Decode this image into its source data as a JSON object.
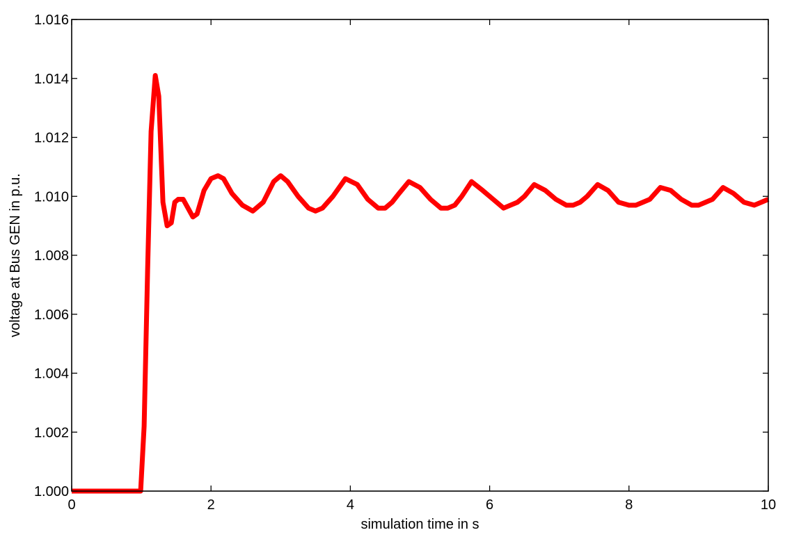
{
  "chart_data": {
    "type": "line",
    "title": "",
    "xlabel": "simulation time in s",
    "ylabel": "voltage at Bus GEN in p.u.",
    "xlim": [
      0,
      10
    ],
    "ylim": [
      1.0,
      1.016
    ],
    "x_ticks": [
      0,
      2,
      4,
      6,
      8,
      10
    ],
    "x_tick_labels": [
      "0",
      "2",
      "4",
      "6",
      "8",
      "10"
    ],
    "y_ticks": [
      1.0,
      1.002,
      1.004,
      1.006,
      1.008,
      1.01,
      1.012,
      1.014,
      1.016
    ],
    "y_tick_labels": [
      "1.000",
      "1.002",
      "1.004",
      "1.006",
      "1.008",
      "1.010",
      "1.012",
      "1.014",
      "1.016"
    ],
    "grid": false,
    "legend": "none",
    "line_color": "#ff0000",
    "series": [
      {
        "color": "#ff0000",
        "x": [
          0,
          0.5,
          0.99,
          1.04,
          1.09,
          1.14,
          1.2,
          1.25,
          1.31,
          1.37,
          1.43,
          1.48,
          1.53,
          1.6,
          1.67,
          1.74,
          1.8,
          1.9,
          2.0,
          2.1,
          2.18,
          2.3,
          2.45,
          2.6,
          2.75,
          2.9,
          3.0,
          3.1,
          3.25,
          3.4,
          3.5,
          3.6,
          3.75,
          3.93,
          4.1,
          4.25,
          4.4,
          4.5,
          4.6,
          4.7,
          4.84,
          5.0,
          5.15,
          5.3,
          5.4,
          5.5,
          5.6,
          5.74,
          5.9,
          6.05,
          6.2,
          6.3,
          6.4,
          6.5,
          6.64,
          6.8,
          6.95,
          7.1,
          7.2,
          7.3,
          7.4,
          7.55,
          7.7,
          7.85,
          8.0,
          8.1,
          8.2,
          8.3,
          8.45,
          8.6,
          8.75,
          8.9,
          9.0,
          9.1,
          9.2,
          9.35,
          9.5,
          9.65,
          9.8,
          9.9,
          10.0
        ],
        "y": [
          1.0,
          1.0,
          1.0,
          1.0022,
          1.0075,
          1.0122,
          1.0141,
          1.0134,
          1.0098,
          1.009,
          1.0091,
          1.0098,
          1.0099,
          1.0099,
          1.0096,
          1.0093,
          1.0094,
          1.0102,
          1.0106,
          1.0107,
          1.0106,
          1.0101,
          1.0097,
          1.0095,
          1.0098,
          1.0105,
          1.0107,
          1.0105,
          1.01,
          1.0096,
          1.0095,
          1.0096,
          1.01,
          1.0106,
          1.0104,
          1.0099,
          1.0096,
          1.0096,
          1.0098,
          1.0101,
          1.0105,
          1.0103,
          1.0099,
          1.0096,
          1.0096,
          1.0097,
          1.01,
          1.0105,
          1.0102,
          1.0099,
          1.0096,
          1.0097,
          1.0098,
          1.01,
          1.0104,
          1.0102,
          1.0099,
          1.0097,
          1.0097,
          1.0098,
          1.01,
          1.0104,
          1.0102,
          1.0098,
          1.0097,
          1.0097,
          1.0098,
          1.0099,
          1.0103,
          1.0102,
          1.0099,
          1.0097,
          1.0097,
          1.0098,
          1.0099,
          1.0103,
          1.0101,
          1.0098,
          1.0097,
          1.0098,
          1.0099
        ]
      }
    ]
  }
}
